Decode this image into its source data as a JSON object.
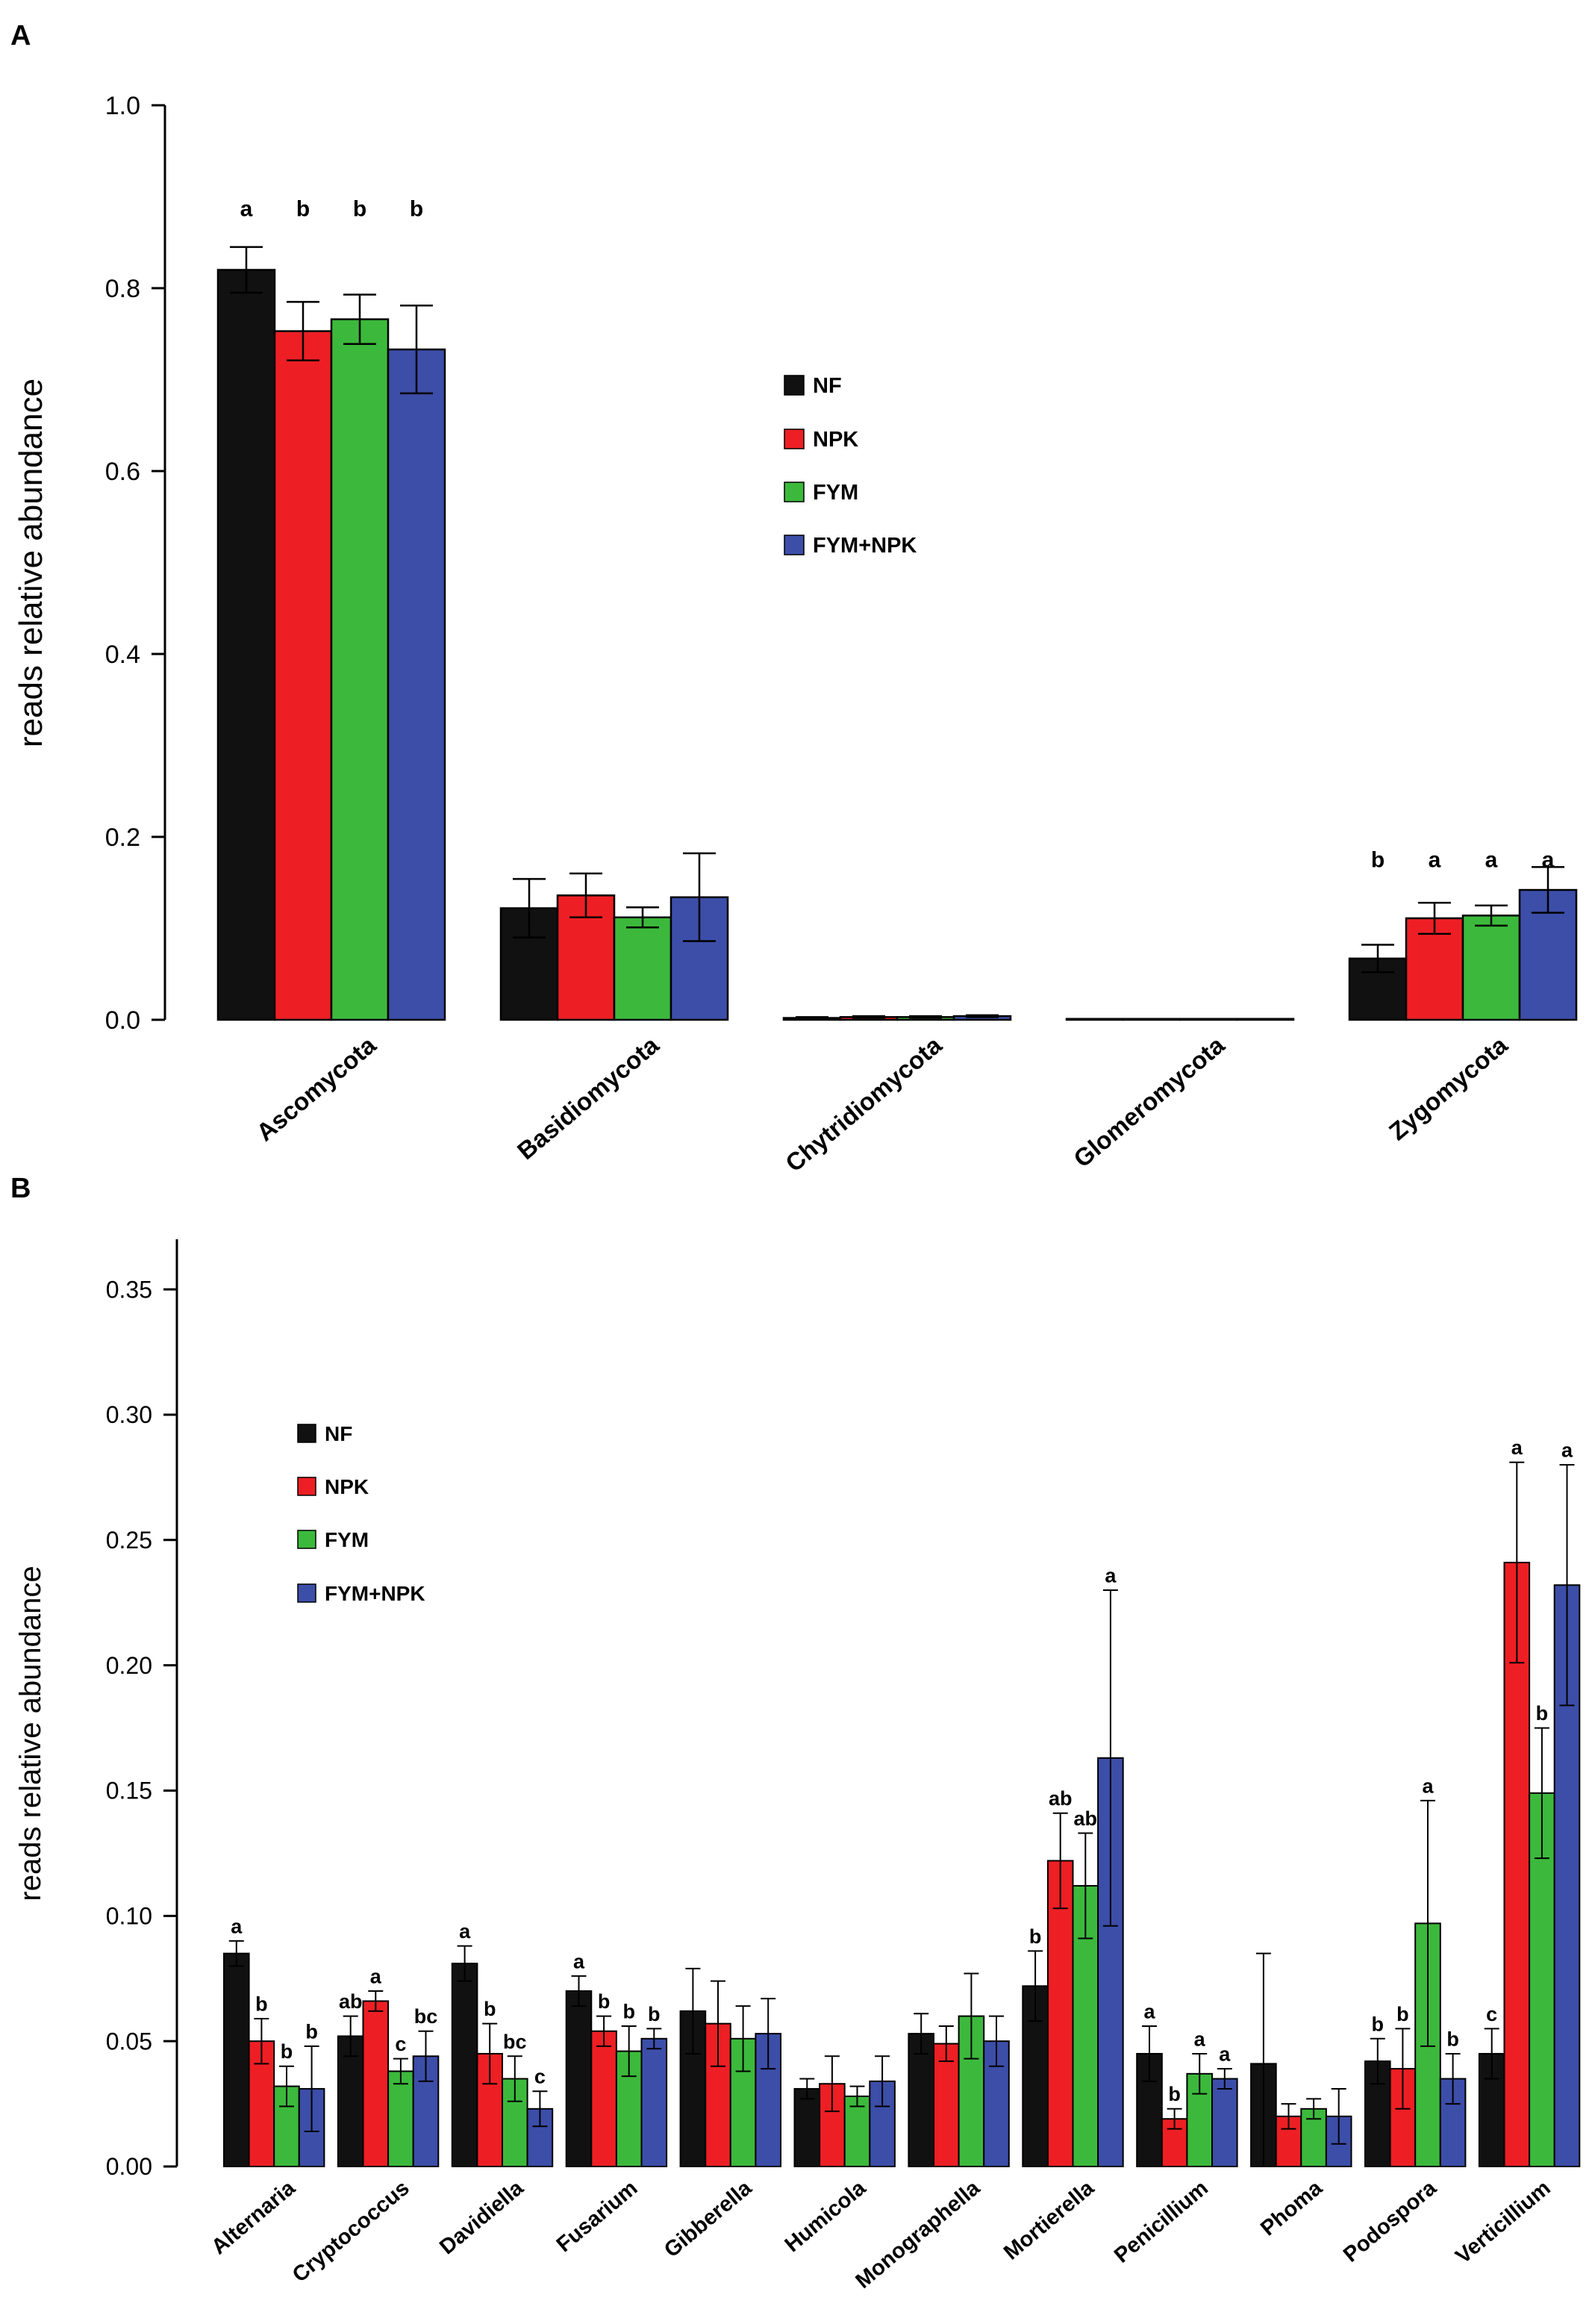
{
  "chart_data": [
    {
      "panel": "A",
      "type": "bar",
      "ylabel": "reads relative abundance",
      "ylim": [
        0,
        1.0
      ],
      "yticks": [
        "0.0",
        "0.2",
        "0.4",
        "0.6",
        "0.8",
        "1.0"
      ],
      "legend": "center",
      "categories": [
        "Ascomycota",
        "Basidiomycota",
        "Chytridiomycota",
        "Glomeromycota",
        "Zygomycota"
      ],
      "series": [
        {
          "name": "NF",
          "color": "#111111",
          "values": [
            0.82,
            0.122,
            0.002,
            0.001,
            0.067
          ],
          "errors": [
            0.025,
            0.032,
            0.001,
            0.0,
            0.015
          ],
          "letters": [
            "a",
            "",
            "",
            "",
            "b"
          ]
        },
        {
          "name": "NPK",
          "color": "#ed1f24",
          "values": [
            0.753,
            0.136,
            0.003,
            0.001,
            0.111
          ],
          "errors": [
            0.032,
            0.024,
            0.001,
            0.0,
            0.017
          ],
          "letters": [
            "b",
            "",
            "",
            "",
            "a"
          ]
        },
        {
          "name": "FYM",
          "color": "#3cb93c",
          "values": [
            0.766,
            0.112,
            0.003,
            0.001,
            0.114
          ],
          "errors": [
            0.027,
            0.011,
            0.001,
            0.0,
            0.011
          ],
          "letters": [
            "b",
            "",
            "",
            "",
            "a"
          ]
        },
        {
          "name": "FYM+NPK",
          "color": "#3c4ea8",
          "values": [
            0.733,
            0.134,
            0.004,
            0.001,
            0.142
          ],
          "errors": [
            0.048,
            0.048,
            0.001,
            0.0,
            0.025
          ],
          "letters": [
            "b",
            "",
            "",
            "",
            "a"
          ]
        }
      ]
    },
    {
      "panel": "B",
      "type": "bar",
      "ylabel": "reads relative abundance",
      "ylim": [
        0,
        0.37
      ],
      "yticks": [
        "0.00",
        "0.05",
        "0.10",
        "0.15",
        "0.20",
        "0.25",
        "0.30",
        "0.35"
      ],
      "legend": "top-left",
      "categories": [
        "Alternaria",
        "Cryptococcus",
        "Davidiella",
        "Fusarium",
        "Gibberella",
        "Humicola",
        "Monographella",
        "Mortierella",
        "Penicillium",
        "Phoma",
        "Podospora",
        "Verticillium"
      ],
      "series": [
        {
          "name": "NF",
          "color": "#111111",
          "values": [
            0.085,
            0.052,
            0.081,
            0.07,
            0.062,
            0.031,
            0.053,
            0.072,
            0.045,
            0.041,
            0.042,
            0.045
          ],
          "errors": [
            0.005,
            0.008,
            0.007,
            0.006,
            0.017,
            0.004,
            0.008,
            0.014,
            0.011,
            0.044,
            0.009,
            0.01
          ],
          "letters": [
            "a",
            "ab",
            "a",
            "a",
            "",
            "",
            "",
            "b",
            "a",
            "",
            "b",
            "c"
          ]
        },
        {
          "name": "NPK",
          "color": "#ed1f24",
          "values": [
            0.05,
            0.066,
            0.045,
            0.054,
            0.057,
            0.033,
            0.049,
            0.122,
            0.019,
            0.02,
            0.039,
            0.241
          ],
          "errors": [
            0.009,
            0.004,
            0.012,
            0.006,
            0.017,
            0.011,
            0.007,
            0.019,
            0.004,
            0.005,
            0.016,
            0.04
          ],
          "letters": [
            "b",
            "a",
            "b",
            "b",
            "",
            "",
            "",
            "ab",
            "b",
            "",
            "b",
            "a"
          ]
        },
        {
          "name": "FYM",
          "color": "#3cb93c",
          "values": [
            0.032,
            0.038,
            0.035,
            0.046,
            0.051,
            0.028,
            0.06,
            0.112,
            0.037,
            0.023,
            0.097,
            0.149
          ],
          "errors": [
            0.008,
            0.005,
            0.009,
            0.01,
            0.013,
            0.004,
            0.017,
            0.021,
            0.008,
            0.004,
            0.049,
            0.026
          ],
          "letters": [
            "b",
            "c",
            "bc",
            "b",
            "",
            "",
            "",
            "ab",
            "a",
            "",
            "a",
            "b"
          ]
        },
        {
          "name": "FYM+NPK",
          "color": "#3c4ea8",
          "values": [
            0.031,
            0.044,
            0.023,
            0.051,
            0.053,
            0.034,
            0.05,
            0.163,
            0.035,
            0.02,
            0.035,
            0.232
          ],
          "errors": [
            0.017,
            0.01,
            0.007,
            0.004,
            0.014,
            0.01,
            0.01,
            0.067,
            0.004,
            0.011,
            0.01,
            0.048
          ],
          "letters": [
            "b",
            "bc",
            "c",
            "b",
            "",
            "",
            "",
            "a",
            "a",
            "",
            "b",
            "a"
          ]
        }
      ]
    }
  ]
}
